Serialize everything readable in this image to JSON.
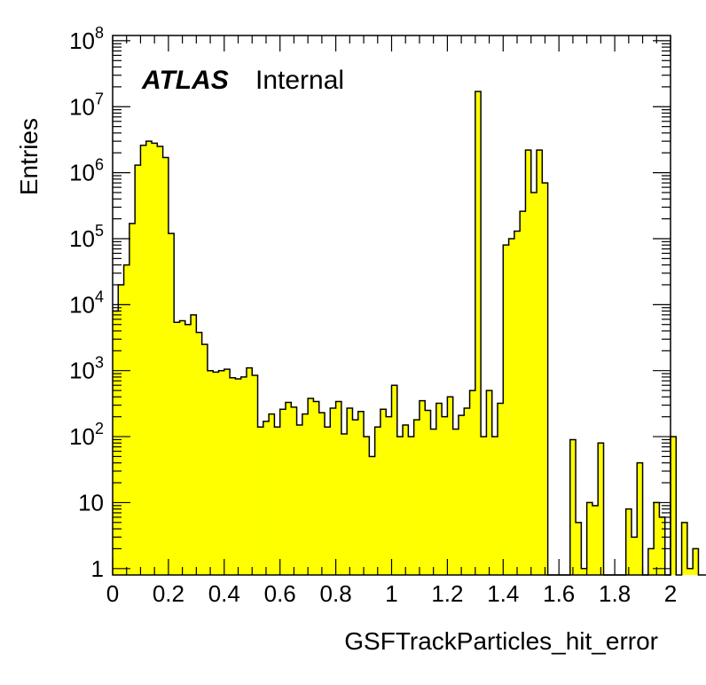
{
  "chart_data": {
    "type": "bar",
    "subtype": "histogram",
    "xlabel": "GSFTrackParticles_hit_error",
    "ylabel": "Entries",
    "xlim": [
      0,
      2
    ],
    "ylim": [
      0.8,
      120000000
    ],
    "yscale": "log",
    "bin_width": 0.02,
    "fill_color": "#ffff00",
    "line_color": "#000000",
    "x_ticks": [
      "0",
      "0.2",
      "0.4",
      "0.6",
      "0.8",
      "1",
      "1.2",
      "1.4",
      "1.6",
      "1.8",
      "2"
    ],
    "x_tick_values": [
      0,
      0.2,
      0.4,
      0.6,
      0.8,
      1.0,
      1.2,
      1.4,
      1.6,
      1.8,
      2.0
    ],
    "y_ticks": [
      {
        "value": 1,
        "base": "1",
        "exp": ""
      },
      {
        "value": 10,
        "base": "10",
        "exp": ""
      },
      {
        "value": 100,
        "base": "10",
        "exp": "2"
      },
      {
        "value": 1000,
        "base": "10",
        "exp": "3"
      },
      {
        "value": 10000,
        "base": "10",
        "exp": "4"
      },
      {
        "value": 100000,
        "base": "10",
        "exp": "5"
      },
      {
        "value": 1000000,
        "base": "10",
        "exp": "6"
      },
      {
        "value": 10000000,
        "base": "10",
        "exp": "7"
      },
      {
        "value": 100000000,
        "base": "10",
        "exp": "8"
      }
    ],
    "label_bold": "ATLAS",
    "label_normal": "Internal",
    "values": [
      8000,
      20000,
      40000,
      170000,
      1300000,
      2600000,
      3000000,
      2800000,
      2500000,
      1700000,
      120000,
      5400,
      5700,
      5000,
      7000,
      3800,
      2500,
      1000,
      950,
      1000,
      1050,
      780,
      750,
      800,
      1100,
      850,
      140,
      170,
      220,
      140,
      260,
      330,
      280,
      150,
      220,
      380,
      340,
      230,
      140,
      270,
      340,
      110,
      270,
      180,
      240,
      100,
      50,
      140,
      260,
      200,
      600,
      100,
      150,
      100,
      180,
      350,
      250,
      130,
      320,
      200,
      400,
      130,
      210,
      270,
      500,
      17000000,
      100,
      500,
      100,
      320,
      80000,
      100000,
      130000,
      260000,
      2200000,
      500000,
      2200000,
      700000,
      0,
      0,
      0,
      0,
      90,
      5,
      1,
      10,
      9,
      80,
      0,
      0,
      0,
      0,
      8,
      3,
      40,
      0,
      2,
      10,
      6,
      0,
      100,
      0,
      5,
      1,
      2,
      0,
      0,
      0,
      0,
      0
    ]
  }
}
